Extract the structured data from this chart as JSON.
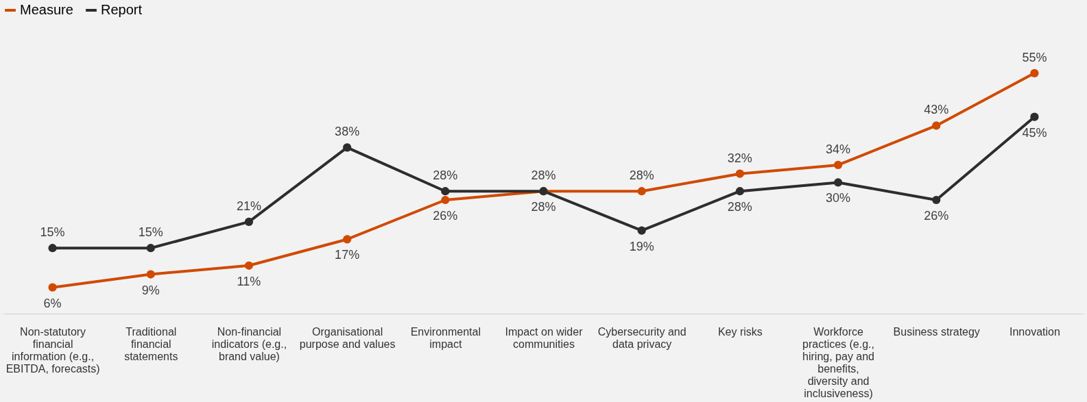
{
  "chart_data": {
    "type": "line",
    "categories": [
      "Non-statutory financial information (e.g., EBITDA, forecasts)",
      "Traditional financial statements",
      "Non-financial indicators (e.g., brand value)",
      "Organisational purpose and values",
      "Environmental impact",
      "Impact on wider communities",
      "Cybersecurity and data privacy",
      "Key risks",
      "Workforce practices (e.g., hiring, pay and benefits, diversity and inclusiveness)",
      "Business strategy",
      "Innovation"
    ],
    "series": [
      {
        "name": "Measure",
        "color": "#d04a02",
        "values": [
          6,
          9,
          11,
          17,
          26,
          28,
          28,
          32,
          34,
          43,
          55
        ],
        "value_labels": [
          "6%",
          "9%",
          "11%",
          "17%",
          "26%",
          "28%",
          "28%",
          "32%",
          "34%",
          "43%",
          "55%"
        ]
      },
      {
        "name": "Report",
        "color": "#2d2d2d",
        "values": [
          15,
          15,
          21,
          38,
          28,
          28,
          19,
          28,
          30,
          26,
          45
        ],
        "value_labels": [
          "15%",
          "15%",
          "21%",
          "38%",
          "28%",
          "28%",
          "19%",
          "28%",
          "30%",
          "26%",
          "45%"
        ]
      }
    ],
    "legend": "top",
    "marker": "circle",
    "tick_labels": "x"
  }
}
